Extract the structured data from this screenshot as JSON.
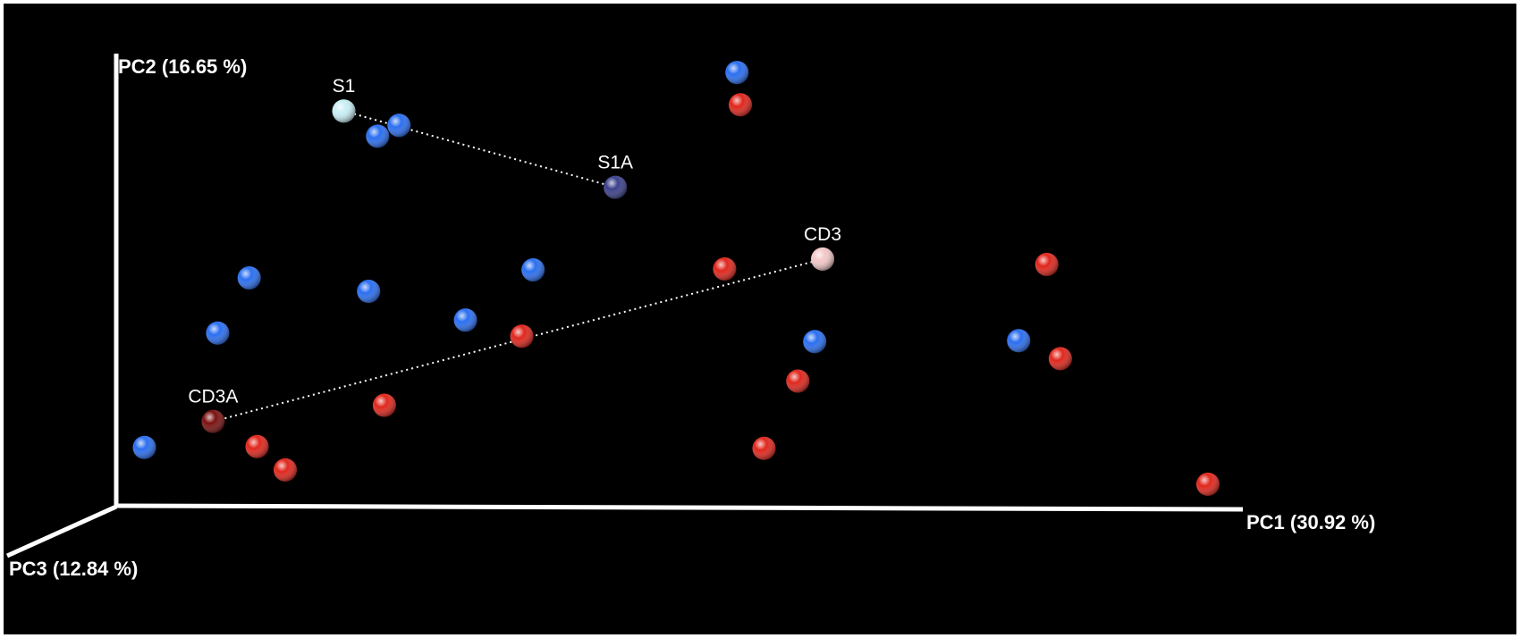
{
  "chart_data": {
    "type": "scatter",
    "projection": "3D PCoA view",
    "axes": {
      "x": {
        "label": "PC1 (30.92 %)",
        "range": [
          0,
          100
        ]
      },
      "y": {
        "label": "PC2 (16.65 %)",
        "range": [
          0,
          100
        ]
      },
      "z": {
        "label": "PC3 (12.84 %)"
      }
    },
    "grid": false,
    "legend": "none",
    "colors": {
      "background": "#000000",
      "group_blue": "#2a6ef0",
      "group_red": "#e0261c",
      "axis": "#ffffff"
    },
    "series": [
      {
        "color": "#2a6ef0",
        "points": [
          {
            "x": 2.5,
            "y": 12.6
          },
          {
            "x": 9.0,
            "y": 38.1
          },
          {
            "x": 11.8,
            "y": 50.4
          },
          {
            "x": 22.4,
            "y": 47.4
          },
          {
            "x": 23.2,
            "y": 82.0
          },
          {
            "x": 25.1,
            "y": 84.4
          },
          {
            "x": 31.0,
            "y": 41.0
          },
          {
            "x": 37.0,
            "y": 52.2
          },
          {
            "x": 55.1,
            "y": 96.2
          },
          {
            "x": 62.0,
            "y": 36.2
          },
          {
            "x": 80.1,
            "y": 36.4
          }
        ]
      },
      {
        "color": "#e0261c",
        "points": [
          {
            "x": 12.5,
            "y": 12.8
          },
          {
            "x": 15.0,
            "y": 7.6
          },
          {
            "x": 23.8,
            "y": 22.0
          },
          {
            "x": 36.0,
            "y": 37.4
          },
          {
            "x": 54.0,
            "y": 52.4
          },
          {
            "x": 55.4,
            "y": 89.0
          },
          {
            "x": 57.5,
            "y": 12.4
          },
          {
            "x": 60.5,
            "y": 27.4
          },
          {
            "x": 82.6,
            "y": 53.4
          },
          {
            "x": 83.8,
            "y": 32.4
          },
          {
            "x": 96.9,
            "y": 4.4
          }
        ]
      }
    ],
    "highlighted": [
      {
        "label": "S1",
        "x": 20.2,
        "y": 87.6,
        "color": "#c8eef5"
      },
      {
        "label": "S1A",
        "x": 44.3,
        "y": 70.6,
        "color": "#3a3f8a"
      },
      {
        "label": "CD3",
        "x": 62.7,
        "y": 54.6,
        "color": "#f3c7c7"
      },
      {
        "label": "CD3A",
        "x": 8.6,
        "y": 18.4,
        "color": "#7a1010"
      }
    ],
    "connections": [
      [
        "S1",
        "S1A"
      ],
      [
        "CD3",
        "CD3A"
      ]
    ]
  }
}
